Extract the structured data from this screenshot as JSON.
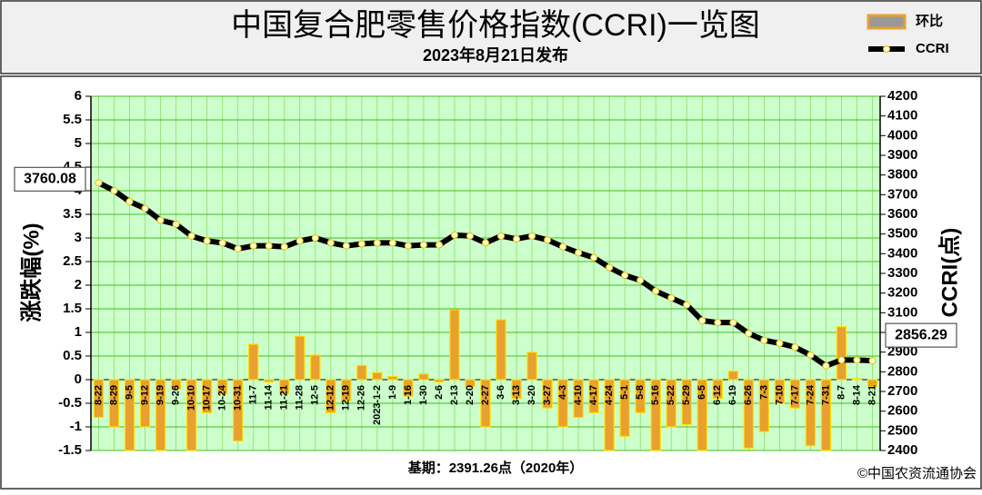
{
  "chart_data": {
    "type": "bar",
    "title": "中国复合肥零售价格指数(CCRI)一览图",
    "subtitle": "2023年8月21日发布",
    "y_label": "涨跌幅(%)",
    "y2_label": "CCRI(点)",
    "footnote": "基期：2391.26点（2020年）",
    "source": "©中国农资流通协会",
    "categories": [
      "8-22",
      "8-29",
      "9-5",
      "9-12",
      "9-19",
      "9-26",
      "10-10",
      "10-17",
      "10-24",
      "10-31",
      "11-7",
      "11-14",
      "11-21",
      "11-28",
      "12-5",
      "12-12",
      "12-19",
      "12-26",
      "2023-1-2",
      "1-9",
      "1-16",
      "1-30",
      "2-6",
      "2-13",
      "2-20",
      "2-27",
      "3-6",
      "3-13",
      "3-20",
      "3-27",
      "4-3",
      "4-10",
      "4-17",
      "4-24",
      "5-1",
      "5-8",
      "5-16",
      "5-22",
      "5-29",
      "6-5",
      "6-12",
      "6-19",
      "6-26",
      "7-3",
      "7-10",
      "7-17",
      "7-24",
      "7-31",
      "8-7",
      "8-14",
      "8-21"
    ],
    "series": [
      {
        "name": "环比",
        "type": "bar",
        "color": "#e8a030",
        "values": [
          -0.8,
          -1.0,
          -1.5,
          -1.0,
          -1.5,
          -0.2,
          -1.5,
          -0.7,
          -0.3,
          -1.3,
          0.75,
          -0.05,
          -0.3,
          0.92,
          0.52,
          -0.7,
          -0.45,
          0.3,
          0.15,
          0.07,
          -0.35,
          0.12,
          -0.05,
          1.48,
          -0.15,
          -1.0,
          1.27,
          -0.4,
          0.58,
          -0.6,
          -1.0,
          -0.8,
          -0.7,
          -1.5,
          -1.2,
          -0.7,
          -1.5,
          -1.0,
          -0.95,
          -1.5,
          -0.4,
          0.18,
          -1.45,
          -1.1,
          -0.5,
          -0.6,
          -1.4,
          -1.5,
          1.12,
          0.02,
          -0.15
        ]
      },
      {
        "name": "CCRI",
        "type": "line",
        "axis": "y2",
        "color": "#000000",
        "values": [
          3760.08,
          3720,
          3665,
          3630,
          3570,
          3550,
          3490,
          3465,
          3455,
          3425,
          3440,
          3440,
          3435,
          3465,
          3480,
          3455,
          3440,
          3450,
          3455,
          3455,
          3440,
          3445,
          3445,
          3495,
          3490,
          3455,
          3490,
          3475,
          3490,
          3470,
          3435,
          3405,
          3380,
          3330,
          3290,
          3265,
          3210,
          3175,
          3140,
          3060,
          3050,
          3050,
          2995,
          2960,
          2945,
          2925,
          2885,
          2830,
          2860,
          2860,
          2856.29
        ],
        "value_labels": [
          "3760.08",
          null,
          null,
          null,
          null,
          null,
          null,
          null,
          null,
          null,
          null,
          null,
          null,
          null,
          null,
          null,
          null,
          null,
          null,
          null,
          null,
          null,
          null,
          null,
          null,
          null,
          null,
          null,
          null,
          null,
          null,
          null,
          null,
          null,
          null,
          null,
          null,
          null,
          null,
          null,
          null,
          null,
          null,
          null,
          null,
          null,
          null,
          null,
          null,
          null,
          "2856.29"
        ]
      }
    ],
    "ylim": [
      -1.5,
      6
    ],
    "yticks": [
      -1.5,
      -1,
      -0.5,
      0,
      0.5,
      1,
      1.5,
      2,
      2.5,
      3,
      3.5,
      4,
      4.5,
      5,
      5.5,
      6
    ],
    "y2lim": [
      2400,
      4200
    ],
    "y2ticks": [
      2400,
      2500,
      2600,
      2700,
      2800,
      2900,
      3000,
      3100,
      3200,
      3300,
      3400,
      3500,
      3600,
      3700,
      3800,
      3900,
      4000,
      4100,
      4200
    ],
    "grid": true,
    "legend": "top-right"
  }
}
